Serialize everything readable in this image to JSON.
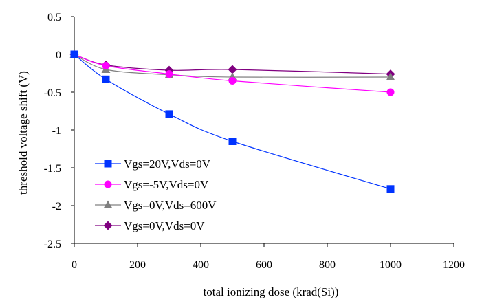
{
  "chart_data": {
    "type": "line",
    "title": "",
    "xlabel": "total ionizing dose (krad(Si))",
    "ylabel": "threshold voltage shift (V)",
    "xlim": [
      0,
      1200
    ],
    "ylim": [
      -2.5,
      0.5
    ],
    "x_ticks": [
      0,
      200,
      400,
      600,
      800,
      1000,
      1200
    ],
    "y_ticks": [
      0.5,
      0,
      -0.5,
      -1,
      -1.5,
      -2,
      -2.5
    ],
    "x_tick_labels": [
      "0",
      "200",
      "400",
      "600",
      "800",
      "1000",
      "1200"
    ],
    "y_tick_labels": [
      "0.5",
      "0",
      "-0.5",
      "-1",
      "-1.5",
      "-2",
      "-2.5"
    ],
    "grid": false,
    "legend_position": "left",
    "series": [
      {
        "name": "Vgs=20V,Vds=0V",
        "marker": "square",
        "color": "#0033FF",
        "x": [
          0,
          100,
          300,
          500,
          1000
        ],
        "values": [
          0,
          -0.33,
          -0.79,
          -1.15,
          -1.78
        ]
      },
      {
        "name": "Vgs=-5V,Vds=0V",
        "marker": "circle",
        "color": "#FF00FF",
        "x": [
          0,
          100,
          300,
          500,
          1000
        ],
        "values": [
          0,
          -0.15,
          -0.26,
          -0.35,
          -0.5
        ]
      },
      {
        "name": "Vgs=0V,Vds=600V",
        "marker": "triangle",
        "color": "#808080",
        "x": [
          0,
          100,
          300,
          500,
          1000
        ],
        "values": [
          0,
          -0.2,
          -0.27,
          -0.3,
          -0.3
        ]
      },
      {
        "name": "Vgs=0V,Vds=0V",
        "marker": "diamond",
        "color": "#800080",
        "x": [
          0,
          100,
          300,
          500,
          1000
        ],
        "values": [
          0,
          -0.14,
          -0.21,
          -0.2,
          -0.26
        ]
      }
    ]
  }
}
